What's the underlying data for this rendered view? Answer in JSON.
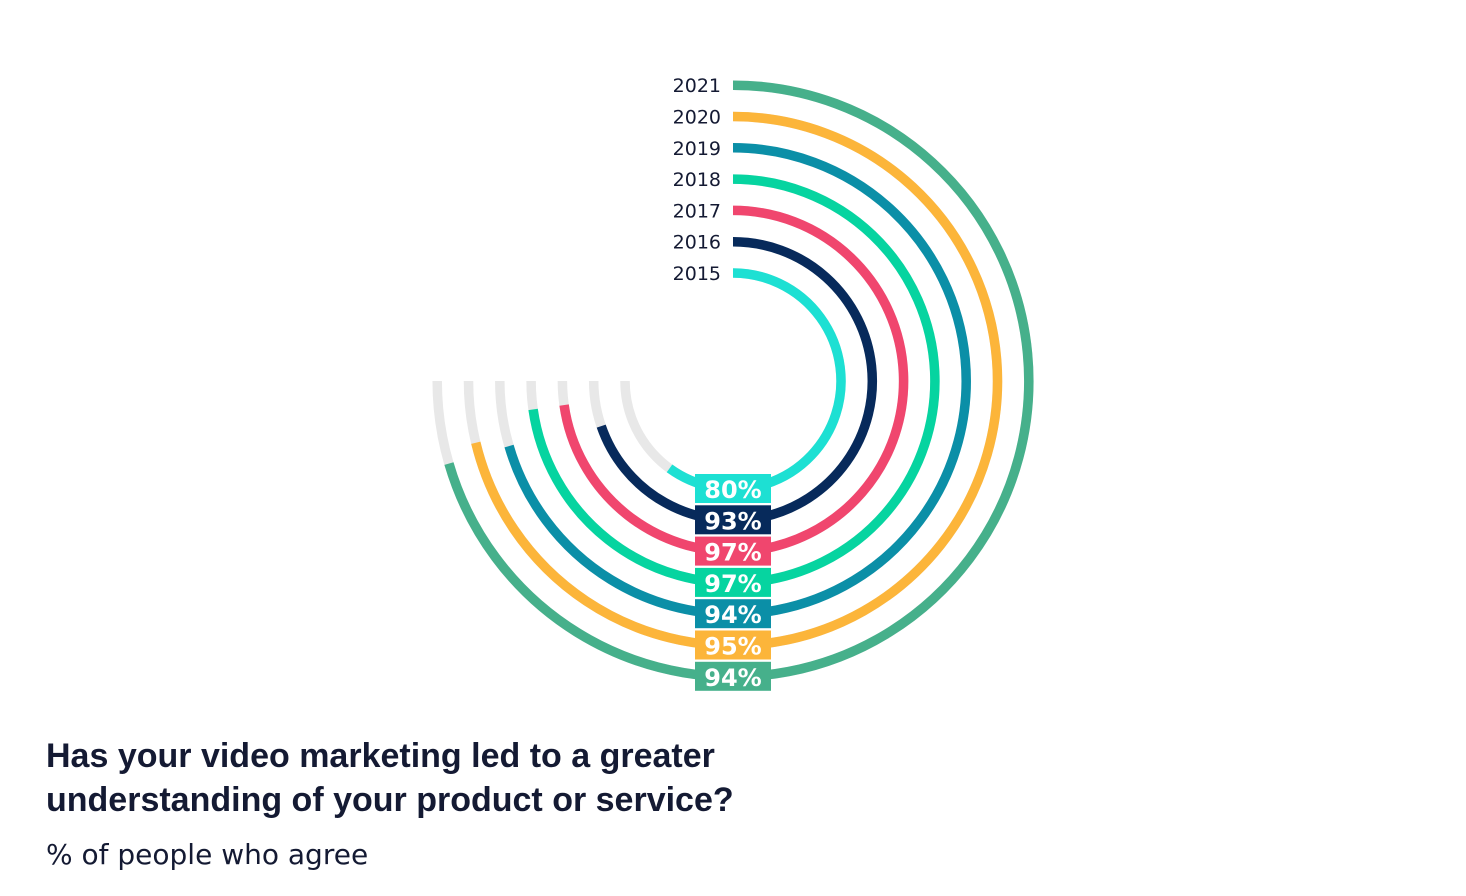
{
  "chart_data": {
    "type": "radial-bar",
    "title_lines": [
      "Has your video marketing led to a greater",
      "understanding of your product or service?"
    ],
    "subtitle": "% of people who agree",
    "max": 100,
    "unit": "%",
    "track_color": "#e8e8e8",
    "series": [
      {
        "year": "2015",
        "value": 80,
        "label": "80%",
        "color": "#1de0d3"
      },
      {
        "year": "2016",
        "value": 93,
        "label": "93%",
        "color": "#072a5b"
      },
      {
        "year": "2017",
        "value": 97,
        "label": "97%",
        "color": "#f0466e"
      },
      {
        "year": "2018",
        "value": 97,
        "label": "97%",
        "color": "#06d4a0"
      },
      {
        "year": "2019",
        "value": 94,
        "label": "94%",
        "color": "#0b8fa7"
      },
      {
        "year": "2020",
        "value": 95,
        "label": "95%",
        "color": "#fcb53a"
      },
      {
        "year": "2021",
        "value": 94,
        "label": "94%",
        "color": "#46b08b"
      }
    ]
  }
}
